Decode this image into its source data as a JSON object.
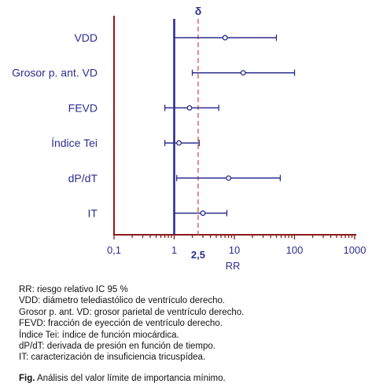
{
  "chart_data": {
    "type": "forest",
    "x_scale": "log",
    "xlim": [
      0.1,
      1000
    ],
    "xlabel": "RR",
    "x_ticks": [
      "0,1",
      "1",
      "10",
      "100",
      "1000"
    ],
    "reference_line": {
      "value": 1
    },
    "threshold_line": {
      "value": 2.5,
      "label": "2,5",
      "symbol": "δ"
    },
    "series": [
      {
        "name": "VDD",
        "point": 7,
        "low": 1,
        "high": 50
      },
      {
        "name": "Grosor p. ant. VD",
        "point": 14,
        "low": 2,
        "high": 100
      },
      {
        "name": "FEVD",
        "point": 1.8,
        "low": 0.7,
        "high": 5.5
      },
      {
        "name": "Índice Tei",
        "point": 1.2,
        "low": 0.7,
        "high": 2.6
      },
      {
        "name": "dP/dT",
        "point": 8,
        "low": 1.1,
        "high": 58
      },
      {
        "name": "IT",
        "point": 3,
        "low": 1,
        "high": 7.5
      }
    ],
    "colors": {
      "axis": "#8b1a1a",
      "ci": "#2b2f8f",
      "threshold": "#e03c3c",
      "text": "#2b2f8f"
    }
  },
  "legend": [
    "RR: riesgo relativo IC 95 %",
    "VDD: diámetro telediastólico de ventrículo derecho.",
    "Grosor p. ant. VD: grosor parietal de ventrículo derecho.",
    "FEVD: fracción de eyección de ventrículo derecho.",
    "Índice Tei: índice de función miocárdica.",
    "dP/dT: derivada de presión en función de tiempo.",
    "IT: caracterización de insuficiencia tricuspídea."
  ],
  "caption": {
    "prefix": "Fig.",
    "text": " Análisis del valor límite de importancia mínimo."
  }
}
